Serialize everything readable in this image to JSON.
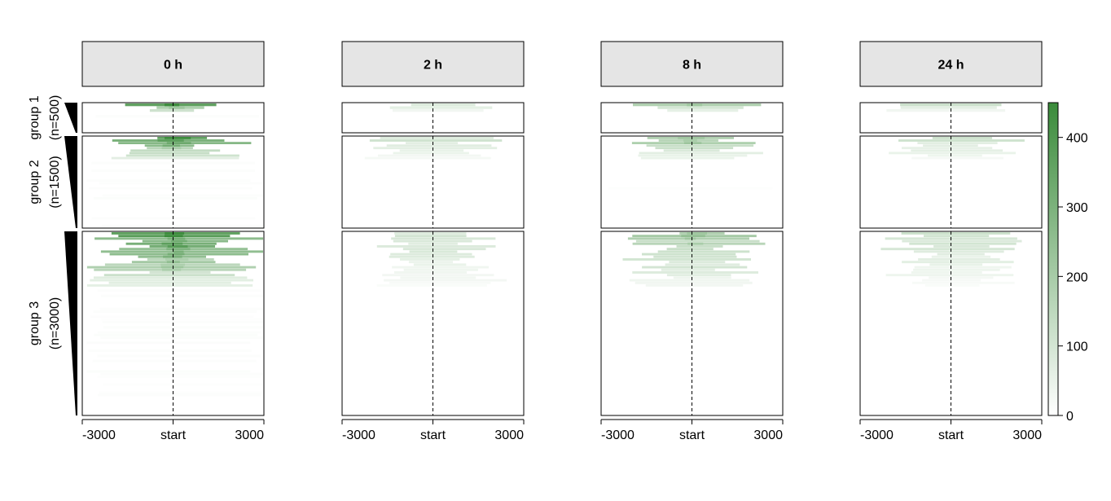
{
  "chart_data": {
    "type": "heatmap",
    "title": "",
    "xlabel": "",
    "ylabel": "",
    "x_tick_labels": [
      "-3000",
      "start",
      "3000"
    ],
    "x_range": [
      -3000,
      3000
    ],
    "reference_line": "start",
    "panels": [
      {
        "label": "0 h",
        "intensity": 1.0
      },
      {
        "label": "2 h",
        "intensity": 0.3
      },
      {
        "label": "8 h",
        "intensity": 0.55
      },
      {
        "label": "24 h",
        "intensity": 0.3
      }
    ],
    "groups": [
      {
        "name": "group 1",
        "count_label": "(n=500)",
        "n": 500
      },
      {
        "name": "group 2",
        "count_label": "(n=1500)",
        "n": 1500
      },
      {
        "name": "group 3",
        "count_label": "(n=3000)",
        "n": 3000
      }
    ],
    "colorbar": {
      "min": 0,
      "max": 450,
      "ticks": [
        "0",
        "100",
        "200",
        "300",
        "400"
      ],
      "tick_values": [
        0,
        100,
        200,
        300,
        400
      ],
      "low_color": "#ffffff",
      "high_color": "#3a8b3a"
    }
  }
}
